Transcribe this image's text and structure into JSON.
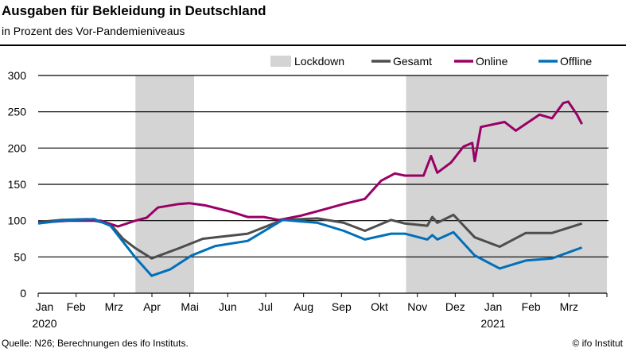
{
  "header": {
    "title": "Ausgaben für Bekleidung in Deutschland",
    "subtitle": "in Prozent des Vor-Pandemieniveaus"
  },
  "footer": {
    "source": "Quelle: N26; Berechnungen des ifo Instituts.",
    "credit": "© ifo Institut"
  },
  "chart_data": {
    "type": "line",
    "title": "Ausgaben für Bekleidung in Deutschland",
    "subtitle": "in Prozent des Vor-Pandemieniveaus",
    "xlim": [
      "2020-01-01",
      "2021-04-01"
    ],
    "ylim": [
      0,
      300
    ],
    "yticks": [
      0,
      50,
      100,
      150,
      200,
      250,
      300
    ],
    "xtick_labels": [
      "Jan",
      "Feb",
      "Mrz",
      "Apr",
      "Mai",
      "Jun",
      "Jul",
      "Aug",
      "Sep",
      "Okt",
      "Nov",
      "Dez",
      "Jan",
      "Feb",
      "Mrz"
    ],
    "year_labels": [
      {
        "label": "2020",
        "month_index": 0
      },
      {
        "label": "2021",
        "month_index": 12
      }
    ],
    "grid": "horizontal",
    "legend_placement": "top-right",
    "lockdowns": {
      "name": "Lockdown",
      "color": "#d4d4d4",
      "periods": [
        [
          "2020-03-19",
          "2020-05-05"
        ],
        [
          "2020-10-22",
          "2021-04-01"
        ]
      ]
    },
    "series": [
      {
        "name": "Gesamt",
        "color": "#4d4d4d",
        "points": [
          [
            "2020-01-01",
            98
          ],
          [
            "2020-01-20",
            101
          ],
          [
            "2020-02-10",
            102
          ],
          [
            "2020-02-28",
            95
          ],
          [
            "2020-03-09",
            75
          ],
          [
            "2020-03-19",
            62
          ],
          [
            "2020-04-01",
            48
          ],
          [
            "2020-04-23",
            62
          ],
          [
            "2020-05-12",
            75
          ],
          [
            "2020-06-17",
            82
          ],
          [
            "2020-07-15",
            101
          ],
          [
            "2020-08-12",
            103
          ],
          [
            "2020-09-02",
            97
          ],
          [
            "2020-09-19",
            86
          ],
          [
            "2020-10-10",
            101
          ],
          [
            "2020-10-21",
            96
          ],
          [
            "2020-11-08",
            93
          ],
          [
            "2020-11-12",
            105
          ],
          [
            "2020-11-16",
            97
          ],
          [
            "2020-11-29",
            108
          ],
          [
            "2020-12-16",
            77
          ],
          [
            "2021-01-05",
            64
          ],
          [
            "2021-01-26",
            83
          ],
          [
            "2021-02-16",
            83
          ],
          [
            "2021-03-12",
            96
          ]
        ]
      },
      {
        "name": "Online",
        "color": "#990066",
        "points": [
          [
            "2020-01-01",
            97
          ],
          [
            "2020-01-25",
            100
          ],
          [
            "2020-02-20",
            100
          ],
          [
            "2020-03-05",
            92
          ],
          [
            "2020-03-19",
            100
          ],
          [
            "2020-03-28",
            104
          ],
          [
            "2020-04-06",
            118
          ],
          [
            "2020-04-23",
            123
          ],
          [
            "2020-05-01",
            124
          ],
          [
            "2020-05-14",
            121
          ],
          [
            "2020-06-04",
            112
          ],
          [
            "2020-06-17",
            105
          ],
          [
            "2020-06-30",
            105
          ],
          [
            "2020-07-12",
            101
          ],
          [
            "2020-07-30",
            107
          ],
          [
            "2020-08-14",
            114
          ],
          [
            "2020-09-02",
            123
          ],
          [
            "2020-09-19",
            130
          ],
          [
            "2020-10-02",
            155
          ],
          [
            "2020-10-13",
            165
          ],
          [
            "2020-10-21",
            162
          ],
          [
            "2020-11-05",
            162
          ],
          [
            "2020-11-11",
            189
          ],
          [
            "2020-11-16",
            166
          ],
          [
            "2020-11-27",
            180
          ],
          [
            "2020-12-07",
            202
          ],
          [
            "2020-12-14",
            207
          ],
          [
            "2020-12-16",
            182
          ],
          [
            "2020-12-21",
            229
          ],
          [
            "2021-01-09",
            236
          ],
          [
            "2021-01-18",
            224
          ],
          [
            "2021-02-06",
            246
          ],
          [
            "2021-02-16",
            241
          ],
          [
            "2021-02-25",
            262
          ],
          [
            "2021-03-01",
            264
          ],
          [
            "2021-03-08",
            246
          ],
          [
            "2021-03-12",
            233
          ]
        ]
      },
      {
        "name": "Offline",
        "color": "#0070b8",
        "points": [
          [
            "2020-01-01",
            96
          ],
          [
            "2020-01-25",
            101
          ],
          [
            "2020-02-15",
            102
          ],
          [
            "2020-02-28",
            93
          ],
          [
            "2020-03-09",
            71
          ],
          [
            "2020-03-19",
            49
          ],
          [
            "2020-04-01",
            24
          ],
          [
            "2020-04-16",
            33
          ],
          [
            "2020-05-03",
            52
          ],
          [
            "2020-05-22",
            65
          ],
          [
            "2020-06-17",
            72
          ],
          [
            "2020-07-15",
            101
          ],
          [
            "2020-08-12",
            97
          ],
          [
            "2020-09-02",
            86
          ],
          [
            "2020-09-19",
            74
          ],
          [
            "2020-10-10",
            82
          ],
          [
            "2020-10-21",
            82
          ],
          [
            "2020-11-08",
            74
          ],
          [
            "2020-11-12",
            80
          ],
          [
            "2020-11-16",
            74
          ],
          [
            "2020-11-29",
            84
          ],
          [
            "2020-12-16",
            52
          ],
          [
            "2021-01-05",
            34
          ],
          [
            "2021-01-26",
            45
          ],
          [
            "2021-02-16",
            48
          ],
          [
            "2021-03-12",
            63
          ]
        ]
      }
    ]
  }
}
